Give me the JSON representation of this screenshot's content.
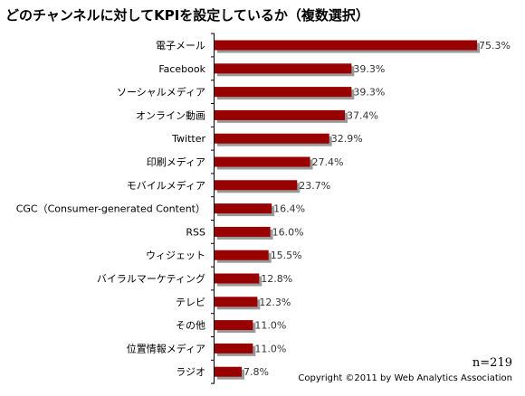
{
  "chart_data": {
    "type": "bar",
    "orientation": "horizontal",
    "title": "どのチャンネルに対してKPIを設定しているか（複数選択）",
    "categories": [
      "電子メール",
      "Facebook",
      "ソーシャルメディア",
      "オンライン動画",
      "Twitter",
      "印刷メディア",
      "モバイルメディア",
      "CGC（Consumer-generated Content）",
      "RSS",
      "ウィジェット",
      "バイラルマーケティング",
      "テレビ",
      "その他",
      "位置情報メディア",
      "ラジオ"
    ],
    "values": [
      75.3,
      39.3,
      39.3,
      37.4,
      32.9,
      27.4,
      23.7,
      16.4,
      16.0,
      15.5,
      12.8,
      12.3,
      11.0,
      11.0,
      7.8
    ],
    "value_labels": [
      "75.3%",
      "39.3%",
      "39.3%",
      "37.4%",
      "32.9%",
      "27.4%",
      "23.7%",
      "16.4%",
      "16.0%",
      "15.5%",
      "12.8%",
      "12.3%",
      "11.0%",
      "11.0%",
      "7.8%"
    ],
    "xlim": [
      0,
      80
    ],
    "grid": false,
    "bar_color": "#990000",
    "bar_shadow_color": "#9a9a9a",
    "sample_size": "n=219",
    "copyright": "Copyright ©2011 by Web Analytics Association"
  }
}
